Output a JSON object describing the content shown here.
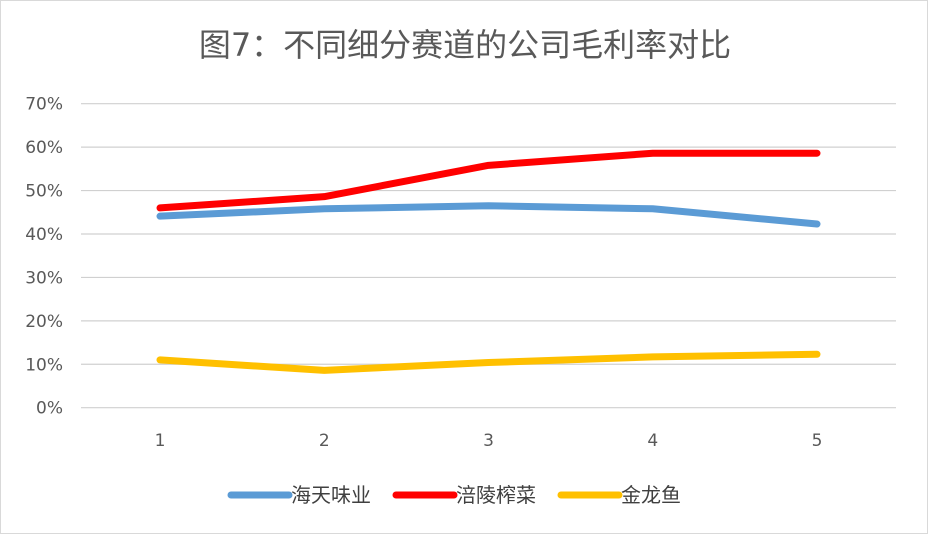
{
  "chart_data": {
    "type": "line",
    "title": "图7：不同细分赛道的公司毛利率对比",
    "xlabel": "",
    "ylabel": "",
    "categories": [
      "1",
      "2",
      "3",
      "4",
      "5"
    ],
    "ylim": [
      0,
      70
    ],
    "yticks": [
      "0%",
      "10%",
      "20%",
      "30%",
      "40%",
      "50%",
      "60%",
      "70%"
    ],
    "grid": true,
    "legend_position": "bottom",
    "series": [
      {
        "name": "海天味业",
        "color": "#5B9BD5",
        "values": [
          44.1,
          45.8,
          46.5,
          45.8,
          42.3
        ]
      },
      {
        "name": "涪陵榨菜",
        "color": "#FF0000",
        "values": [
          46.0,
          48.6,
          55.8,
          58.6,
          58.6
        ]
      },
      {
        "name": "金龙鱼",
        "color": "#FFC000",
        "values": [
          11.0,
          8.6,
          10.4,
          11.7,
          12.3
        ]
      }
    ]
  }
}
